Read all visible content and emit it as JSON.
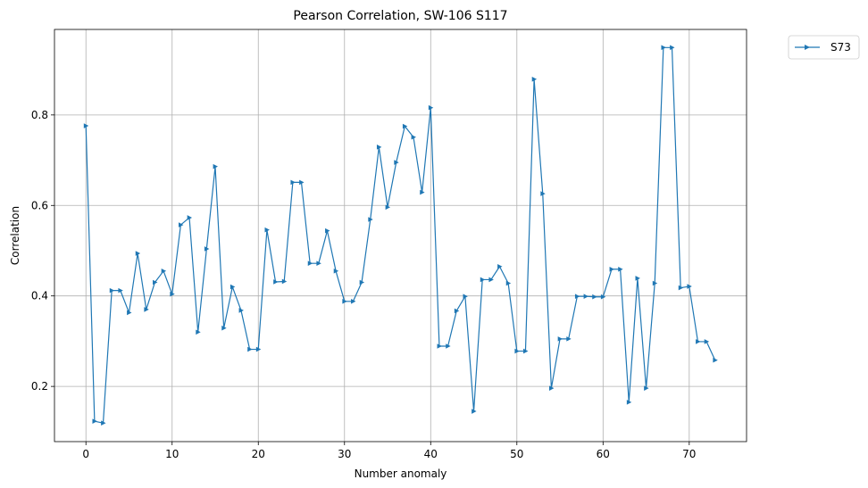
{
  "chart_data": {
    "type": "line",
    "title": "Pearson Correlation, SW-106  S117",
    "xlabel": "Number anomaly",
    "ylabel": "Correlation",
    "xlim": [
      -3.65,
      76.65
    ],
    "ylim": [
      0.078,
      0.989
    ],
    "xticks": [
      0,
      10,
      20,
      30,
      40,
      50,
      60,
      70
    ],
    "yticks": [
      0.2,
      0.4,
      0.6,
      0.8
    ],
    "xtick_labels": [
      "0",
      "10",
      "20",
      "30",
      "40",
      "50",
      "60",
      "70"
    ],
    "ytick_labels": [
      "0.2",
      "0.4",
      "0.6",
      "0.8"
    ],
    "grid": true,
    "legend_position": "outside-top-right",
    "series": [
      {
        "name": "S73",
        "color": "#1f77b4",
        "marker": "triangle-right",
        "x": [
          0,
          1,
          2,
          3,
          4,
          5,
          6,
          7,
          8,
          9,
          10,
          11,
          12,
          13,
          14,
          15,
          16,
          17,
          18,
          19,
          20,
          21,
          22,
          23,
          24,
          25,
          26,
          27,
          28,
          29,
          30,
          31,
          32,
          33,
          34,
          35,
          36,
          37,
          38,
          39,
          40,
          41,
          42,
          43,
          44,
          45,
          46,
          47,
          48,
          49,
          50,
          51,
          52,
          53,
          54,
          55,
          56,
          57,
          58,
          59,
          60,
          61,
          62,
          63,
          64,
          65,
          66,
          67,
          68,
          69,
          70,
          71,
          72,
          73
        ],
        "values": [
          0.776,
          0.123,
          0.119,
          0.412,
          0.412,
          0.363,
          0.494,
          0.37,
          0.43,
          0.455,
          0.404,
          0.557,
          0.573,
          0.32,
          0.504,
          0.686,
          0.329,
          0.42,
          0.368,
          0.282,
          0.282,
          0.546,
          0.431,
          0.432,
          0.651,
          0.651,
          0.472,
          0.472,
          0.544,
          0.455,
          0.388,
          0.388,
          0.43,
          0.569,
          0.729,
          0.596,
          0.695,
          0.775,
          0.751,
          0.629,
          0.816,
          0.289,
          0.289,
          0.367,
          0.399,
          0.145,
          0.436,
          0.436,
          0.465,
          0.428,
          0.278,
          0.278,
          0.879,
          0.626,
          0.196,
          0.305,
          0.305,
          0.399,
          0.399,
          0.398,
          0.398,
          0.459,
          0.459,
          0.165,
          0.439,
          0.196,
          0.428,
          0.949,
          0.949,
          0.418,
          0.421,
          0.299,
          0.299,
          0.258
        ]
      }
    ]
  }
}
